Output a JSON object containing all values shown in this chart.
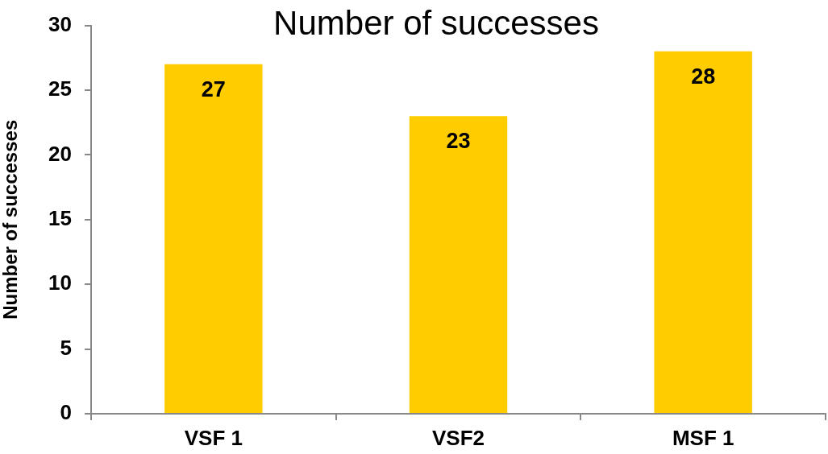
{
  "chart_data": {
    "type": "bar",
    "title": "Number of successes",
    "ylabel": "Number of successes",
    "categories": [
      "VSF 1",
      "VSF2",
      "MSF 1"
    ],
    "values": [
      27,
      23,
      28
    ],
    "color": "#ffcc00",
    "ylim": [
      0,
      30
    ],
    "yticks": [
      0,
      5,
      10,
      15,
      20,
      25,
      30
    ],
    "data_labels": true
  }
}
